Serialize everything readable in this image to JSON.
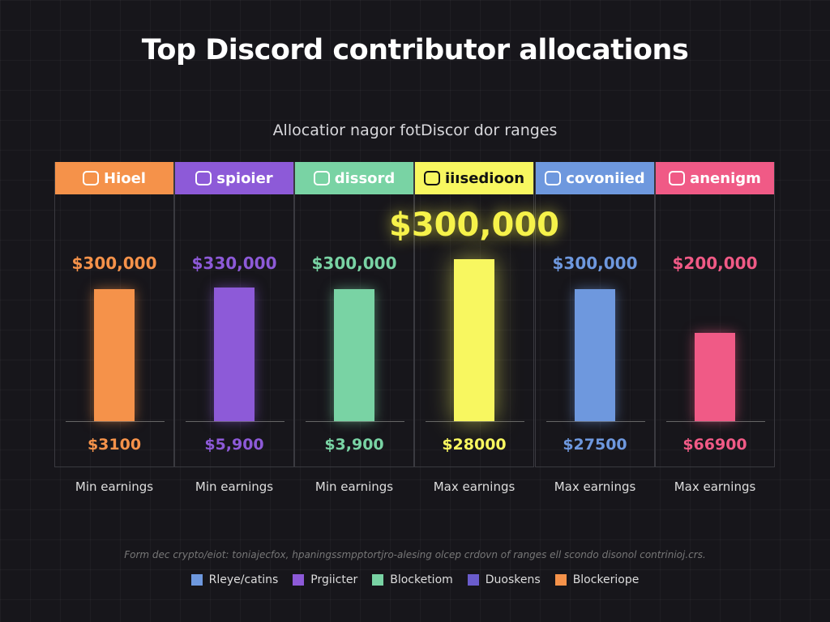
{
  "chart_data": {
    "type": "bar",
    "title": "Top Discord contributor allocations",
    "subtitle": "Allocatior nagor fotDiscor dor ranges",
    "categories": [
      "Hioel",
      "spioier",
      "dissord",
      "iiısedioon",
      "covoniied",
      "anenigm"
    ],
    "colors": [
      "#f5924a",
      "#8d5ad8",
      "#79d3a4",
      "#f8f760",
      "#6e98de",
      "#f05a86"
    ],
    "values": [
      300000,
      330000,
      300000,
      300000,
      300000,
      200000
    ],
    "value_labels": [
      "$300,000",
      "$330,000",
      "$300,000",
      "$300,000",
      "$300,000",
      "$200,000"
    ],
    "min_labels": [
      "$3100",
      "$5,900",
      "$3,900",
      "$28000",
      "$27500",
      "$66900"
    ],
    "bottom_labels": [
      "Min earnings",
      "Min earnings",
      "Min earnings",
      "Max earnings",
      "Max earnings",
      "Max earnings"
    ],
    "highlighted_index": 3,
    "highlight_label": "$300,000",
    "footnote": "Form dec crypto/eiot: toniajecfox, hpaningssmpptortjro-alesing olcep crdovn of ranges ell scondo disonol contrinioj.crs.",
    "legend": [
      {
        "name": "Rleye/catins",
        "color": "#6e98de"
      },
      {
        "name": "Prgiicter",
        "color": "#8d5ad8"
      },
      {
        "name": "Blocketiom",
        "color": "#79d3a4"
      },
      {
        "name": "Duoskens",
        "color": "#6a5ccc"
      },
      {
        "name": "Blockeriope",
        "color": "#f5924a"
      }
    ],
    "grid": true
  }
}
